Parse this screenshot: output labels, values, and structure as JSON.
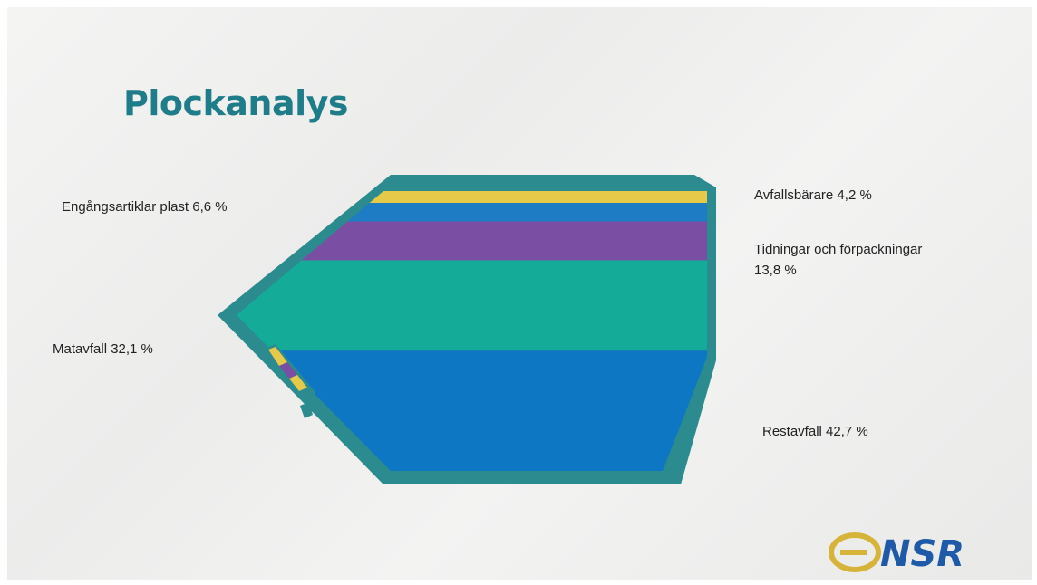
{
  "slide": {
    "title": "Plockanalys"
  },
  "chart_data": {
    "type": "bar",
    "orientation": "stacked",
    "title": "Plockanalys",
    "unit": "%",
    "categories": [
      "Avfallsbärare",
      "Engångsartiklar plast",
      "Tidningar och förpackningar",
      "Matavfall",
      "Restavfall"
    ],
    "values": [
      4.2,
      6.6,
      13.8,
      32.1,
      42.7
    ],
    "labels": [
      "Avfallsbärare 4,2 %",
      "Engångsartiklar plast 6,6 %",
      "Tidningar och förpackningar 13,8 %",
      "Matavfall 32,1 %",
      "Restavfall 42,7 %"
    ],
    "colors": [
      "#e6c948",
      "#1d7cc4",
      "#7a4fa3",
      "#14ac99",
      "#0e77c4"
    ]
  },
  "colors": {
    "container_outline": "#2b8b8e",
    "title": "#1f7d89"
  },
  "logo": {
    "text": "NSR"
  }
}
